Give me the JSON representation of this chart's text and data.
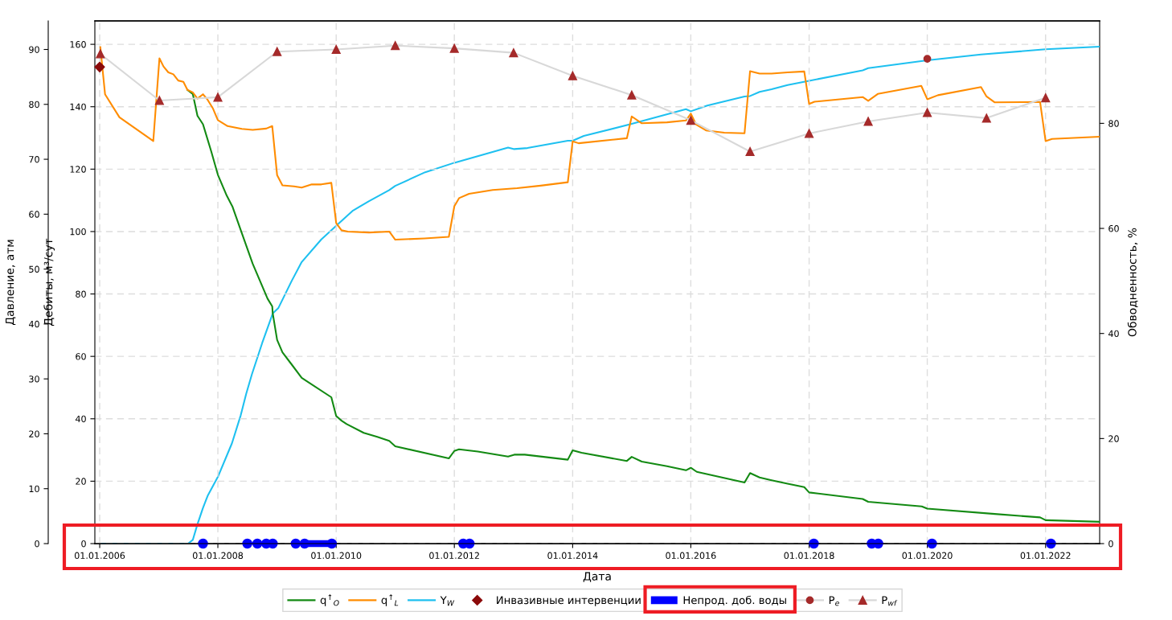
{
  "chart_data": {
    "type": "line",
    "xlabel": "Дата",
    "ylabel": "Дебиты, м³/сут",
    "y2label": "Обводненность, %",
    "y3label": "Давление, атм",
    "xlim": [
      "2005-12-02",
      "2022-12-01"
    ],
    "xticks": [
      {
        "value": "2006-01-01",
        "label": "01.01.2006"
      },
      {
        "value": "2008-01-01",
        "label": "01.01.2008"
      },
      {
        "value": "2010-01-01",
        "label": "01.01.2010"
      },
      {
        "value": "2012-01-01",
        "label": "01.01.2012"
      },
      {
        "value": "2014-01-01",
        "label": "01.01.2014"
      },
      {
        "value": "2016-01-01",
        "label": "01.01.2016"
      },
      {
        "value": "2018-01-01",
        "label": "01.01.2018"
      },
      {
        "value": "2020-01-01",
        "label": "01.01.2020"
      },
      {
        "value": "2022-01-01",
        "label": "01.01.2022"
      }
    ],
    "ylim": [
      0,
      167.5
    ],
    "yticks": [
      0,
      20,
      40,
      60,
      80,
      100,
      120,
      140,
      160
    ],
    "y2lim": [
      0,
      99.5
    ],
    "y2ticks": [
      0,
      20,
      40,
      60,
      80
    ],
    "y3lim": [
      0,
      95.2
    ],
    "y3ticks": [
      0,
      10,
      20,
      30,
      40,
      50,
      60,
      70,
      80,
      90
    ],
    "grid": true,
    "legend": "bottom",
    "series": [
      {
        "name": "q$^{↑}$$_{O}$",
        "color": "#138a13",
        "x": [
          "2007-06-27",
          "2007-07-30",
          "2007-08-28",
          "2007-10-01",
          "2007-11-21",
          "2008-01-01",
          "2008-02-25",
          "2008-04-01",
          "2008-05-28",
          "2008-08-03",
          "2008-11-03",
          "2008-12-02",
          "2008-12-05",
          "2009-01-01",
          "2009-02-03",
          "2009-04-01",
          "2009-06-02",
          "2009-07-23",
          "2009-12-02",
          "2010-01-01",
          "2010-02-03",
          "2010-03-07",
          "2010-06-20",
          "2010-09-12",
          "2010-11-25",
          "2011-01-01",
          "2011-11-28",
          "2012-01-01",
          "2012-01-30",
          "2012-05-25",
          "2012-11-28",
          "2013-01-05",
          "2013-03-11",
          "2013-12-02",
          "2014-01-01",
          "2014-02-25",
          "2014-12-02",
          "2015-01-01",
          "2015-03-04",
          "2015-08-07",
          "2015-12-02",
          "2016-01-01",
          "2016-02-07",
          "2016-11-28",
          "2017-01-01",
          "2017-03-01",
          "2017-05-14",
          "2017-08-21",
          "2017-12-02",
          "2018-01-01",
          "2018-11-28",
          "2019-01-01",
          "2019-11-28",
          "2020-01-01",
          "2021-02-21",
          "2021-11-28",
          "2022-01-01",
          "2022-11-28"
        ],
        "values": [
          145.4,
          144.1,
          137.1,
          134.4,
          125.7,
          118.2,
          111.5,
          107.9,
          99.5,
          89.7,
          78.5,
          76.0,
          73.8,
          65.3,
          61.3,
          57.4,
          53.1,
          51.4,
          46.9,
          40.9,
          39.4,
          38.3,
          35.5,
          34.2,
          32.9,
          31.2,
          27.3,
          29.7,
          30.2,
          29.5,
          27.9,
          28.5,
          28.5,
          26.9,
          29.9,
          29.1,
          26.5,
          27.8,
          26.3,
          24.8,
          23.5,
          24.3,
          23.0,
          19.6,
          22.6,
          21.2,
          20.3,
          19.2,
          18.1,
          16.4,
          14.3,
          13.4,
          11.9,
          11.2,
          9.5,
          8.4,
          7.5,
          7.0
        ]
      },
      {
        "name": "q$^{↑}$$_{L}$",
        "color": "#ff8c00",
        "x": [
          "2006-01-05",
          "2006-02-03",
          "2006-05-03",
          "2006-11-28",
          "2007-01-05",
          "2007-01-30",
          "2007-03-01",
          "2007-04-01",
          "2007-05-01",
          "2007-06-02",
          "2007-06-27",
          "2007-07-30",
          "2007-08-28",
          "2007-10-01",
          "2007-10-30",
          "2007-12-02",
          "2008-01-01",
          "2008-03-01",
          "2008-05-28",
          "2008-08-03",
          "2008-10-26",
          "2008-12-02",
          "2009-01-01",
          "2009-02-03",
          "2009-04-15",
          "2009-06-02",
          "2009-08-03",
          "2009-10-01",
          "2009-12-02",
          "2010-01-01",
          "2010-02-03",
          "2010-03-14",
          "2010-07-23",
          "2010-11-25",
          "2011-01-01",
          "2011-07-01",
          "2011-11-28",
          "2012-01-01",
          "2012-01-30",
          "2012-04-01",
          "2012-08-25",
          "2013-01-23",
          "2013-06-17",
          "2013-12-02",
          "2014-01-01",
          "2014-02-07",
          "2014-12-02",
          "2015-01-01",
          "2015-03-04",
          "2015-08-07",
          "2015-12-02",
          "2016-01-01",
          "2016-02-03",
          "2016-04-04",
          "2016-07-26",
          "2016-11-28",
          "2017-01-01",
          "2017-03-01",
          "2017-05-14",
          "2017-08-21",
          "2017-12-02",
          "2018-01-01",
          "2018-02-03",
          "2018-11-28",
          "2019-01-01",
          "2019-03-01",
          "2019-11-25",
          "2020-01-01",
          "2020-03-07",
          "2020-11-28",
          "2021-01-01",
          "2021-02-21",
          "2021-11-28",
          "2022-01-01",
          "2022-02-10",
          "2022-11-28"
        ],
        "values": [
          159.1,
          144.0,
          136.6,
          129.0,
          155.5,
          152.9,
          151.0,
          150.4,
          148.4,
          148.0,
          145.4,
          144.6,
          142.6,
          144.0,
          142.2,
          139.4,
          135.7,
          133.8,
          132.9,
          132.6,
          133.0,
          133.8,
          118.1,
          114.8,
          114.5,
          114.1,
          115.1,
          115.1,
          115.6,
          102.7,
          100.4,
          100.0,
          99.7,
          100.0,
          97.4,
          97.8,
          98.3,
          108.1,
          110.7,
          112.1,
          113.3,
          113.9,
          114.7,
          115.8,
          128.9,
          128.3,
          129.9,
          136.9,
          134.7,
          135.0,
          135.6,
          137.8,
          134.3,
          132.4,
          131.7,
          131.5,
          151.4,
          150.6,
          150.6,
          151.0,
          151.3,
          140.9,
          141.6,
          143.1,
          141.9,
          144.1,
          146.7,
          142.4,
          143.7,
          146.3,
          143.3,
          141.4,
          141.5,
          129.0,
          129.7,
          130.4
        ]
      },
      {
        "name": "Y$_{W}$",
        "axis": "y2",
        "color": "#1ec0f0",
        "x": [
          "2006-01-01",
          "2007-07-01",
          "2007-07-30",
          "2007-08-28",
          "2007-10-01",
          "2007-10-30",
          "2008-01-01",
          "2008-03-28",
          "2008-05-21",
          "2008-06-24",
          "2008-07-30",
          "2008-10-01",
          "2008-12-05",
          "2009-01-08",
          "2009-04-01",
          "2009-06-02",
          "2009-10-01",
          "2010-01-08",
          "2010-04-15",
          "2010-07-23",
          "2010-11-25",
          "2011-01-01",
          "2011-07-05",
          "2012-01-01",
          "2012-11-28",
          "2013-01-05",
          "2013-03-28",
          "2013-12-02",
          "2014-01-01",
          "2014-03-11",
          "2015-01-01",
          "2015-12-02",
          "2016-01-01",
          "2016-04-12",
          "2016-11-28",
          "2017-01-01",
          "2017-03-01",
          "2017-05-14",
          "2017-08-21",
          "2018-01-01",
          "2018-11-28",
          "2019-01-01",
          "2020-01-01",
          "2020-11-28",
          "2022-01-01",
          "2022-11-28"
        ],
        "values": [
          0,
          0,
          0.7,
          3.7,
          6.8,
          9.1,
          12.7,
          19.1,
          24.4,
          28.5,
          32.3,
          38.2,
          43.8,
          44.8,
          50.0,
          53.6,
          57.9,
          60.7,
          63.4,
          65.2,
          67.3,
          68.1,
          70.7,
          72.5,
          75.4,
          75.1,
          75.3,
          76.7,
          76.7,
          77.6,
          79.9,
          82.7,
          82.3,
          83.4,
          85.1,
          85.2,
          86.0,
          86.5,
          87.3,
          88.1,
          90.1,
          90.5,
          92.0,
          93.1,
          94.1,
          94.6
        ]
      },
      {
        "name": "Инвазивные интервенции",
        "type": "scatter",
        "axis": "y3",
        "color": "#8b0a0a",
        "marker": "diamond",
        "x": [
          "2006-01-01"
        ],
        "values": [
          86.8
        ]
      },
      {
        "name": "Непрод. доб. воды",
        "color": "#0000ff",
        "marker": "circle",
        "x": [
          "2007-10-01",
          "2008-01-01",
          "2008-07-01",
          "2008-08-01",
          "2008-09-01",
          "2008-10-01",
          "2008-10-26",
          "2008-12-05",
          "2009-02-01",
          "2009-04-26",
          "2009-05-15",
          "2009-06-20",
          "2009-12-05",
          "2010-06-01",
          "2012-02-25",
          "2012-04-04",
          "2015-01-01",
          "2018-01-30",
          "2018-07-01",
          "2019-01-23",
          "2019-03-04",
          "2019-07-01",
          "2020-01-30",
          "2021-01-01",
          "2022-02-03"
        ],
        "values": [
          0,
          null,
          0,
          null,
          0,
          null,
          0,
          0,
          null,
          0,
          null,
          0,
          0,
          null,
          0,
          0,
          null,
          0,
          null,
          0,
          0,
          null,
          0,
          null,
          0
        ]
      },
      {
        "name": "P$_{e}$",
        "axis": "y3",
        "color": "#a52a2a",
        "marker": "circle",
        "x": [
          "2020-01-01"
        ],
        "values": [
          88.3
        ]
      },
      {
        "name": "P$_{wf}$",
        "axis": "y3",
        "color": "#a52a2a",
        "marker": "triangle",
        "x": [
          "2006-01-05",
          "2007-01-05",
          "2008-01-01",
          "2009-01-01",
          "2010-01-01",
          "2011-01-01",
          "2012-01-01",
          "2013-01-01",
          "2014-01-01",
          "2015-01-01",
          "2016-01-01",
          "2017-01-01",
          "2018-01-01",
          "2019-01-01",
          "2020-01-01",
          "2021-01-01",
          "2022-01-01"
        ],
        "values": [
          89.2,
          80.7,
          81.3,
          89.6,
          90.0,
          90.7,
          90.2,
          89.4,
          85.2,
          81.7,
          77.1,
          71.4,
          74.7,
          76.9,
          78.5,
          77.5,
          81.2
        ]
      }
    ]
  }
}
